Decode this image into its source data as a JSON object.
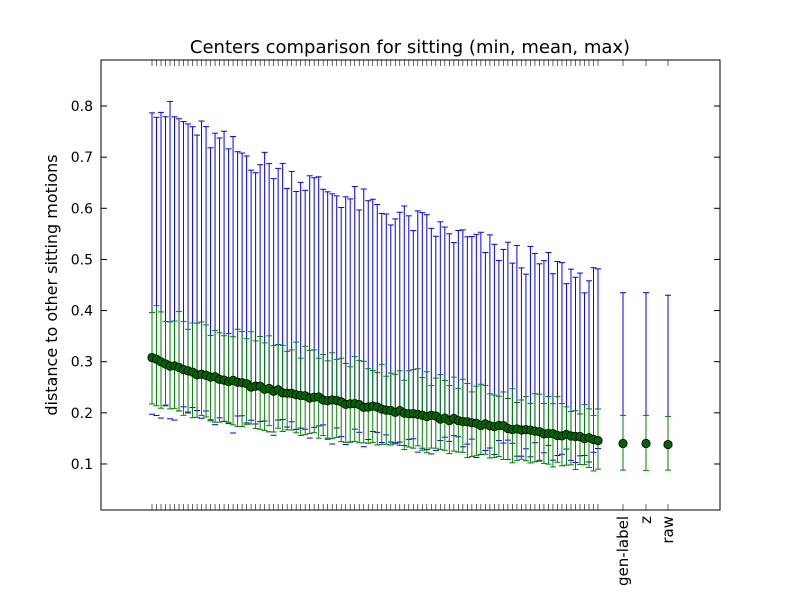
{
  "chart_data": {
    "type": "errorbar",
    "title": "Centers comparison for sitting (min, mean, max)",
    "xlabel": "",
    "ylabel": "distance to other sitting motions",
    "ylim": [
      0.01,
      0.89
    ],
    "yticks": [
      0.1,
      0.2,
      0.3,
      0.4,
      0.5,
      0.6,
      0.7,
      0.8
    ],
    "grid": false,
    "legend": "none",
    "colors": {
      "max_bar": "#0000ff",
      "min_bar": "#008000",
      "mean_marker": "#006400",
      "axis": "#000000"
    },
    "unlabeled_series": {
      "count": 100,
      "mean_start": 0.31,
      "mean_end": 0.147,
      "max_start": 0.815,
      "max_end": 0.455,
      "min_start": 0.22,
      "min_end": 0.09,
      "upper_green_start": 0.405,
      "upper_green_end": 0.205,
      "lower_blue_start": 0.215,
      "lower_blue_end": 0.115
    },
    "labeled_points": [
      {
        "label": "gen-label",
        "min": 0.088,
        "mean": 0.14,
        "max": 0.435,
        "upper_green": 0.195
      },
      {
        "label": "z",
        "min": 0.087,
        "mean": 0.14,
        "max": 0.435,
        "upper_green": 0.195
      },
      {
        "label": "raw",
        "min": 0.088,
        "mean": 0.138,
        "max": 0.43,
        "upper_green": 0.193
      }
    ]
  }
}
